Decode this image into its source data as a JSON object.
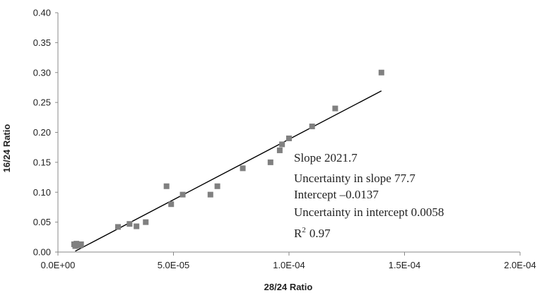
{
  "chart_data": {
    "type": "scatter",
    "xlabel": "28/24 Ratio",
    "ylabel": "16/24 Ratio",
    "xlim": [
      0,
      0.0002
    ],
    "ylim": [
      0,
      0.4
    ],
    "x_ticks": [
      "0.0E+00",
      "5.0E-05",
      "1.0E-04",
      "1.5E-04",
      "2.0E-04"
    ],
    "y_ticks": [
      "0.00",
      "0.05",
      "0.10",
      "0.15",
      "0.20",
      "0.25",
      "0.30",
      "0.35",
      "0.40"
    ],
    "grid": false,
    "marker_color": "#808080",
    "line_color": "#000000",
    "points": [
      {
        "x": 7e-06,
        "y": 0.013
      },
      {
        "x": 7.5e-06,
        "y": 0.01
      },
      {
        "x": 8e-06,
        "y": 0.014
      },
      {
        "x": 8.5e-06,
        "y": 0.012
      },
      {
        "x": 9e-06,
        "y": 0.013
      },
      {
        "x": 9.5e-06,
        "y": 0.011
      },
      {
        "x": 1e-05,
        "y": 0.013
      },
      {
        "x": 2.6e-05,
        "y": 0.042
      },
      {
        "x": 3.1e-05,
        "y": 0.047
      },
      {
        "x": 3.4e-05,
        "y": 0.043
      },
      {
        "x": 3.8e-05,
        "y": 0.05
      },
      {
        "x": 4.7e-05,
        "y": 0.11
      },
      {
        "x": 4.9e-05,
        "y": 0.08
      },
      {
        "x": 5.4e-05,
        "y": 0.096
      },
      {
        "x": 6.6e-05,
        "y": 0.096
      },
      {
        "x": 6.9e-05,
        "y": 0.11
      },
      {
        "x": 8e-05,
        "y": 0.14
      },
      {
        "x": 9.2e-05,
        "y": 0.15
      },
      {
        "x": 9.6e-05,
        "y": 0.17
      },
      {
        "x": 9.7e-05,
        "y": 0.18
      },
      {
        "x": 0.0001,
        "y": 0.19
      },
      {
        "x": 0.00011,
        "y": 0.21
      },
      {
        "x": 0.00012,
        "y": 0.24
      },
      {
        "x": 0.00014,
        "y": 0.3
      }
    ],
    "fit_line": {
      "x_start": 7.5e-06,
      "x_end": 0.00014,
      "slope": 2021.7,
      "intercept": -0.0137
    },
    "annotations": [
      "Slope 2021.7",
      "Uncertainty in slope 77.7",
      "Intercept –0.0137",
      "Uncertainty in intercept 0.0058"
    ],
    "r2_label": "R",
    "r2_exponent": "2",
    "r2_value": "0.97"
  }
}
